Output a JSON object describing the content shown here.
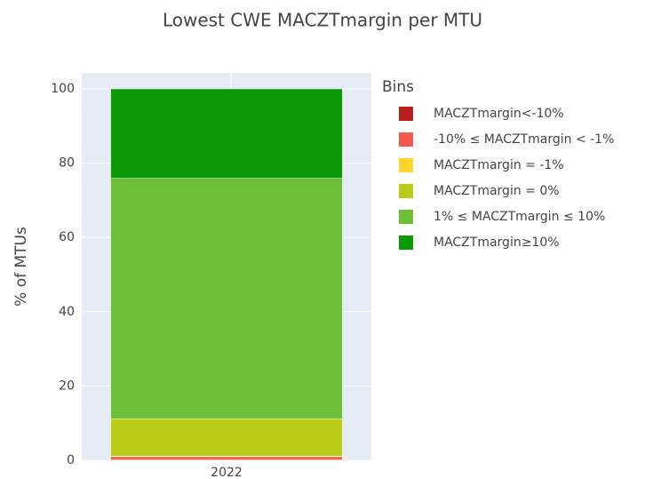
{
  "chart_data": {
    "type": "stacked_bar",
    "title": "Lowest CWE MACZTmargin per MTU",
    "y_label": "% of MTUs",
    "legend_title": "Bins",
    "categories": [
      "2022"
    ],
    "series": [
      {
        "name": "MACZTmargin<-10%",
        "color": "#b5201e",
        "values": [
          0.2
        ]
      },
      {
        "name": "-10% ≤ MACZTmargin < -1%",
        "color": "#f25a4e",
        "values": [
          0.8
        ]
      },
      {
        "name": "MACZTmargin = -1%",
        "color": "#ffd52e",
        "values": [
          0.1
        ]
      },
      {
        "name": "MACZTmargin = 0%",
        "color": "#bccb16",
        "values": [
          10.1
        ]
      },
      {
        "name": "1% ≤ MACZTmargin ≤ 10%",
        "color": "#6cbf36",
        "values": [
          64.7
        ]
      },
      {
        "name": "MACZTmargin≥10%",
        "color": "#0c9908",
        "values": [
          24.1
        ]
      }
    ],
    "ylim": [
      0,
      104.3
    ],
    "yticks": [
      0,
      20,
      40,
      60,
      80,
      100
    ],
    "grid": true
  }
}
